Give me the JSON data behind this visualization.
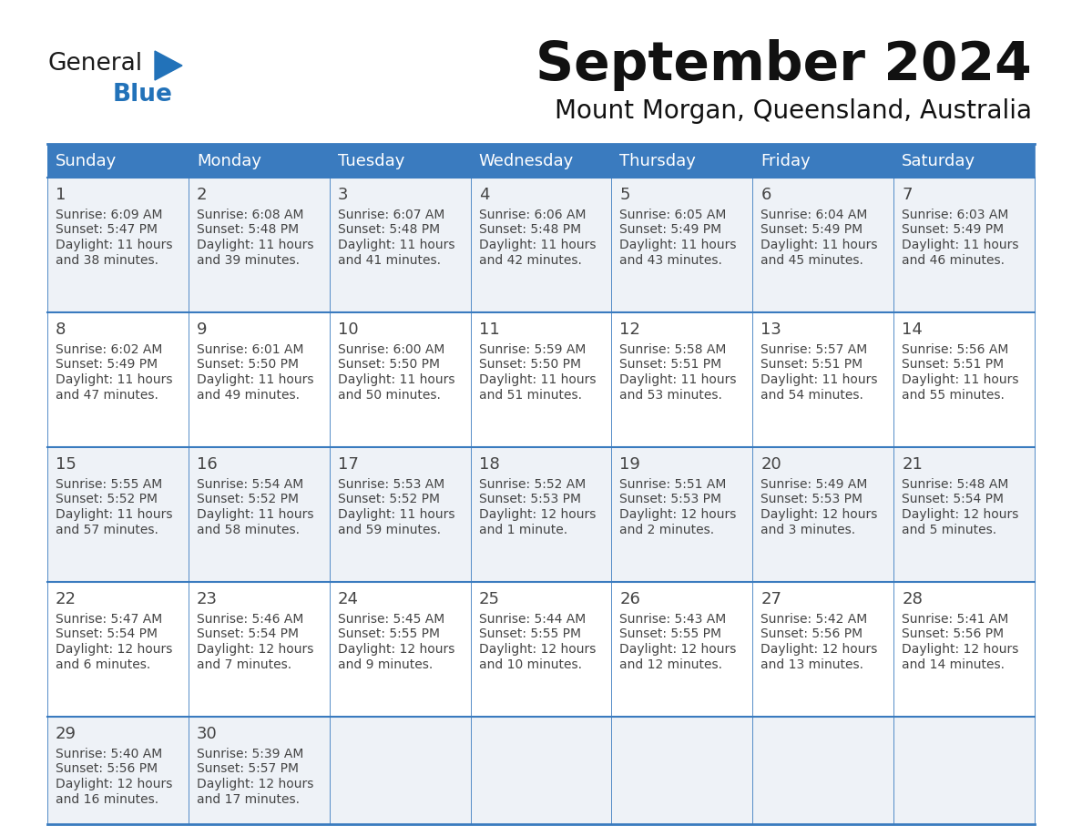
{
  "title": "September 2024",
  "subtitle": "Mount Morgan, Queensland, Australia",
  "header_bg_color": "#3a7bbf",
  "header_text_color": "#ffffff",
  "row_bg_odd": "#eef2f7",
  "row_bg_even": "#ffffff",
  "border_color": "#3a7bbf",
  "day_headers": [
    "Sunday",
    "Monday",
    "Tuesday",
    "Wednesday",
    "Thursday",
    "Friday",
    "Saturday"
  ],
  "days": [
    {
      "day": 1,
      "col": 0,
      "row": 0,
      "sunrise": "6:09 AM",
      "sunset": "5:47 PM",
      "daylight_hours": 11,
      "daylight_minutes": 38
    },
    {
      "day": 2,
      "col": 1,
      "row": 0,
      "sunrise": "6:08 AM",
      "sunset": "5:48 PM",
      "daylight_hours": 11,
      "daylight_minutes": 39
    },
    {
      "day": 3,
      "col": 2,
      "row": 0,
      "sunrise": "6:07 AM",
      "sunset": "5:48 PM",
      "daylight_hours": 11,
      "daylight_minutes": 41
    },
    {
      "day": 4,
      "col": 3,
      "row": 0,
      "sunrise": "6:06 AM",
      "sunset": "5:48 PM",
      "daylight_hours": 11,
      "daylight_minutes": 42
    },
    {
      "day": 5,
      "col": 4,
      "row": 0,
      "sunrise": "6:05 AM",
      "sunset": "5:49 PM",
      "daylight_hours": 11,
      "daylight_minutes": 43
    },
    {
      "day": 6,
      "col": 5,
      "row": 0,
      "sunrise": "6:04 AM",
      "sunset": "5:49 PM",
      "daylight_hours": 11,
      "daylight_minutes": 45
    },
    {
      "day": 7,
      "col": 6,
      "row": 0,
      "sunrise": "6:03 AM",
      "sunset": "5:49 PM",
      "daylight_hours": 11,
      "daylight_minutes": 46
    },
    {
      "day": 8,
      "col": 0,
      "row": 1,
      "sunrise": "6:02 AM",
      "sunset": "5:49 PM",
      "daylight_hours": 11,
      "daylight_minutes": 47
    },
    {
      "day": 9,
      "col": 1,
      "row": 1,
      "sunrise": "6:01 AM",
      "sunset": "5:50 PM",
      "daylight_hours": 11,
      "daylight_minutes": 49
    },
    {
      "day": 10,
      "col": 2,
      "row": 1,
      "sunrise": "6:00 AM",
      "sunset": "5:50 PM",
      "daylight_hours": 11,
      "daylight_minutes": 50
    },
    {
      "day": 11,
      "col": 3,
      "row": 1,
      "sunrise": "5:59 AM",
      "sunset": "5:50 PM",
      "daylight_hours": 11,
      "daylight_minutes": 51
    },
    {
      "day": 12,
      "col": 4,
      "row": 1,
      "sunrise": "5:58 AM",
      "sunset": "5:51 PM",
      "daylight_hours": 11,
      "daylight_minutes": 53
    },
    {
      "day": 13,
      "col": 5,
      "row": 1,
      "sunrise": "5:57 AM",
      "sunset": "5:51 PM",
      "daylight_hours": 11,
      "daylight_minutes": 54
    },
    {
      "day": 14,
      "col": 6,
      "row": 1,
      "sunrise": "5:56 AM",
      "sunset": "5:51 PM",
      "daylight_hours": 11,
      "daylight_minutes": 55
    },
    {
      "day": 15,
      "col": 0,
      "row": 2,
      "sunrise": "5:55 AM",
      "sunset": "5:52 PM",
      "daylight_hours": 11,
      "daylight_minutes": 57
    },
    {
      "day": 16,
      "col": 1,
      "row": 2,
      "sunrise": "5:54 AM",
      "sunset": "5:52 PM",
      "daylight_hours": 11,
      "daylight_minutes": 58
    },
    {
      "day": 17,
      "col": 2,
      "row": 2,
      "sunrise": "5:53 AM",
      "sunset": "5:52 PM",
      "daylight_hours": 11,
      "daylight_minutes": 59
    },
    {
      "day": 18,
      "col": 3,
      "row": 2,
      "sunrise": "5:52 AM",
      "sunset": "5:53 PM",
      "daylight_hours": 12,
      "daylight_minutes": 1
    },
    {
      "day": 19,
      "col": 4,
      "row": 2,
      "sunrise": "5:51 AM",
      "sunset": "5:53 PM",
      "daylight_hours": 12,
      "daylight_minutes": 2
    },
    {
      "day": 20,
      "col": 5,
      "row": 2,
      "sunrise": "5:49 AM",
      "sunset": "5:53 PM",
      "daylight_hours": 12,
      "daylight_minutes": 3
    },
    {
      "day": 21,
      "col": 6,
      "row": 2,
      "sunrise": "5:48 AM",
      "sunset": "5:54 PM",
      "daylight_hours": 12,
      "daylight_minutes": 5
    },
    {
      "day": 22,
      "col": 0,
      "row": 3,
      "sunrise": "5:47 AM",
      "sunset": "5:54 PM",
      "daylight_hours": 12,
      "daylight_minutes": 6
    },
    {
      "day": 23,
      "col": 1,
      "row": 3,
      "sunrise": "5:46 AM",
      "sunset": "5:54 PM",
      "daylight_hours": 12,
      "daylight_minutes": 7
    },
    {
      "day": 24,
      "col": 2,
      "row": 3,
      "sunrise": "5:45 AM",
      "sunset": "5:55 PM",
      "daylight_hours": 12,
      "daylight_minutes": 9
    },
    {
      "day": 25,
      "col": 3,
      "row": 3,
      "sunrise": "5:44 AM",
      "sunset": "5:55 PM",
      "daylight_hours": 12,
      "daylight_minutes": 10
    },
    {
      "day": 26,
      "col": 4,
      "row": 3,
      "sunrise": "5:43 AM",
      "sunset": "5:55 PM",
      "daylight_hours": 12,
      "daylight_minutes": 12
    },
    {
      "day": 27,
      "col": 5,
      "row": 3,
      "sunrise": "5:42 AM",
      "sunset": "5:56 PM",
      "daylight_hours": 12,
      "daylight_minutes": 13
    },
    {
      "day": 28,
      "col": 6,
      "row": 3,
      "sunrise": "5:41 AM",
      "sunset": "5:56 PM",
      "daylight_hours": 12,
      "daylight_minutes": 14
    },
    {
      "day": 29,
      "col": 0,
      "row": 4,
      "sunrise": "5:40 AM",
      "sunset": "5:56 PM",
      "daylight_hours": 12,
      "daylight_minutes": 16
    },
    {
      "day": 30,
      "col": 1,
      "row": 4,
      "sunrise": "5:39 AM",
      "sunset": "5:57 PM",
      "daylight_hours": 12,
      "daylight_minutes": 17
    }
  ],
  "logo_color_general": "#1a1a1a",
  "logo_color_blue": "#2272b9",
  "logo_triangle_color": "#2272b9",
  "title_fontsize": 42,
  "subtitle_fontsize": 20,
  "header_fontsize": 13,
  "day_num_fontsize": 13,
  "cell_text_fontsize": 10
}
